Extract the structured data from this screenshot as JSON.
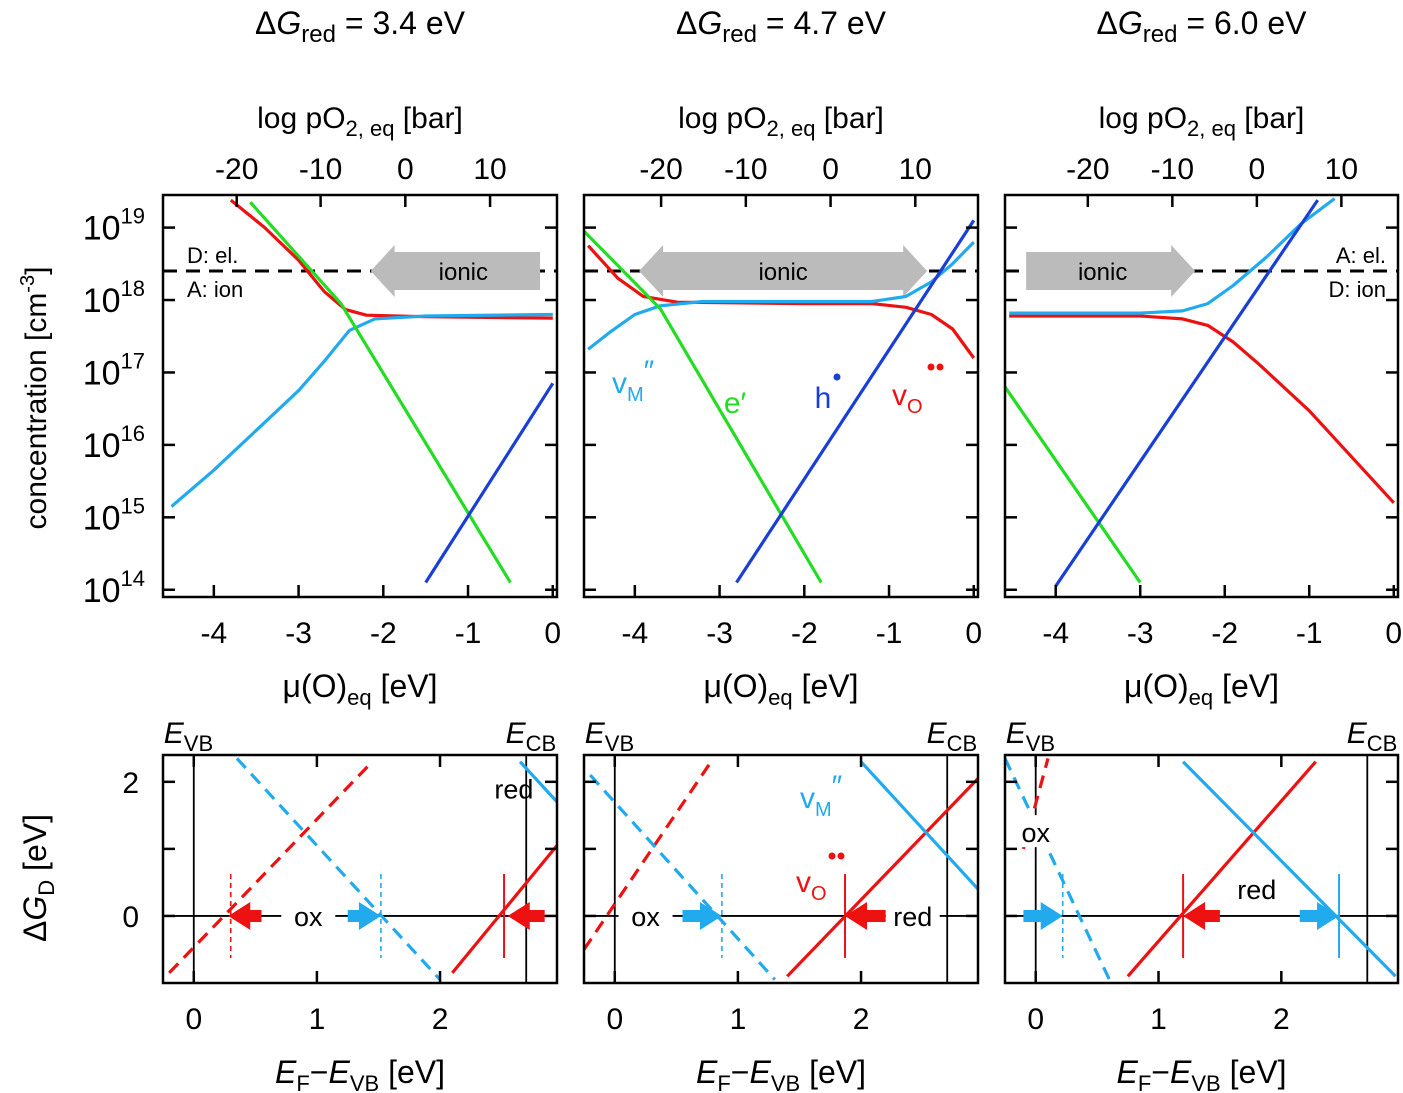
{
  "colors": {
    "vM": "#22aaee",
    "vO": "#ee1111",
    "h": "#1a3fd6",
    "e": "#22dd22",
    "arrow": "#bbbbbb",
    "axis": "#000000"
  },
  "labels": {
    "delta": "Δ",
    "G": "G",
    "red": "red",
    "ylabel_top": "concentration [cm",
    "ylabel_top_exp": "-3",
    "ylabel_top_close": "]",
    "top_axis_pre": "log pO",
    "top_axis_sub": "2, eq",
    "top_axis_post": "[bar]",
    "bottom_axis_pre": "μ(O)",
    "bottom_axis_sub": "eq",
    "bottom_axis_post": "[eV]",
    "ylabel_bottom_delta": "Δ",
    "ylabel_bottom_G": "G",
    "ylabel_bottom_sub": "D",
    "ylabel_bottom_unit": "[eV]",
    "xlabel_E": "E",
    "xlabel_F": "F",
    "xlabel_minus": "−",
    "xlabel_VB": "VB",
    "xlabel_unit": "[eV]",
    "E": "E",
    "VB": "VB",
    "CB": "CB",
    "ionic": "ionic",
    "ox": "ox",
    "red_label": "red",
    "D_el": "D: el.",
    "A_ion": "A: ion",
    "A_el": "A: el.",
    "D_ion": "D: ion",
    "vM": "v",
    "vM_sub": "M",
    "vM_sup": "″",
    "e_label": "e′",
    "h_label": "h",
    "vO": "v",
    "vO_sub": "O"
  },
  "chart_data": [
    {
      "type": "line",
      "title": "ΔGred = 3.4 eV",
      "title_value": "3.4 eV",
      "xlabel": "μ(O)eq [eV]",
      "x2label": "log pO2, eq [bar]",
      "ylabel": "concentration [cm-3]",
      "xlim": [
        -4.6,
        0.05
      ],
      "ylim_log10": [
        13.9,
        19.45
      ],
      "y_scale": "log",
      "xticks": [
        -4,
        -3,
        -2,
        -1,
        0
      ],
      "x2ticks": [
        -20,
        -10,
        0,
        10
      ],
      "x2_at_mu": [
        -3.73,
        -2.74,
        -1.74,
        -0.74
      ],
      "yticks_exp": [
        14,
        15,
        16,
        17,
        18,
        19
      ],
      "dashed_level_log10": 18.4,
      "ionic_arrow": {
        "direction": "left",
        "from": -0.15,
        "to": -2.15
      },
      "dashed_labels": "D",
      "series": [
        {
          "name": "vO",
          "color": "vO",
          "points": [
            [
              -3.8,
              19.38
            ],
            [
              -3.4,
              19.0
            ],
            [
              -3.0,
              18.55
            ],
            [
              -2.7,
              18.12
            ],
            [
              -2.45,
              17.87
            ],
            [
              -2.2,
              17.79
            ],
            [
              -1.5,
              17.77
            ],
            [
              0.0,
              17.75
            ]
          ]
        },
        {
          "name": "vM",
          "color": "vM",
          "points": [
            [
              -4.5,
              15.15
            ],
            [
              -4.0,
              15.65
            ],
            [
              -3.5,
              16.2
            ],
            [
              -3.0,
              16.75
            ],
            [
              -2.7,
              17.15
            ],
            [
              -2.4,
              17.58
            ],
            [
              -2.1,
              17.74
            ],
            [
              -1.5,
              17.78
            ],
            [
              0.0,
              17.8
            ]
          ]
        },
        {
          "name": "e'",
          "color": "e",
          "points": [
            [
              -3.57,
              19.35
            ],
            [
              -2.5,
              17.95
            ],
            [
              -0.5,
              14.1
            ]
          ]
        },
        {
          "name": "h",
          "color": "h",
          "points": [
            [
              -1.5,
              14.1
            ],
            [
              0.0,
              16.85
            ]
          ]
        }
      ]
    },
    {
      "type": "line",
      "title": "ΔGred = 4.7 eV",
      "title_value": "4.7 eV",
      "xlabel": "μ(O)eq [eV]",
      "x2label": "log pO2, eq [bar]",
      "ylabel": "concentration [cm-3]",
      "xlim": [
        -4.6,
        0.05
      ],
      "ylim_log10": [
        13.9,
        19.45
      ],
      "y_scale": "log",
      "xticks": [
        -4,
        -3,
        -2,
        -1,
        0
      ],
      "x2ticks": [
        -20,
        -10,
        0,
        10
      ],
      "x2_at_mu": [
        -3.69,
        -2.69,
        -1.69,
        -0.69
      ],
      "yticks_exp": [
        14,
        15,
        16,
        17,
        18,
        19
      ],
      "dashed_level_log10": 18.4,
      "ionic_arrow": {
        "direction": "both",
        "from": -3.95,
        "to": -0.55
      },
      "dashed_labels": "none",
      "series": [
        {
          "name": "vO",
          "color": "vO",
          "points": [
            [
              -4.55,
              18.75
            ],
            [
              -4.2,
              18.3
            ],
            [
              -3.9,
              18.05
            ],
            [
              -3.5,
              17.97
            ],
            [
              -2.0,
              17.95
            ],
            [
              -1.2,
              17.95
            ],
            [
              -0.8,
              17.9
            ],
            [
              -0.5,
              17.8
            ],
            [
              -0.25,
              17.6
            ],
            [
              0.0,
              17.2
            ]
          ]
        },
        {
          "name": "vM",
          "color": "vM",
          "points": [
            [
              -4.55,
              17.32
            ],
            [
              -4.3,
              17.55
            ],
            [
              -4.0,
              17.8
            ],
            [
              -3.7,
              17.92
            ],
            [
              -3.2,
              17.98
            ],
            [
              -1.2,
              17.98
            ],
            [
              -0.8,
              18.05
            ],
            [
              -0.5,
              18.25
            ],
            [
              -0.25,
              18.5
            ],
            [
              0.0,
              18.8
            ]
          ]
        },
        {
          "name": "e'",
          "color": "e",
          "points": [
            [
              -4.6,
              18.95
            ],
            [
              -3.7,
              17.88
            ],
            [
              -1.8,
              14.1
            ]
          ]
        },
        {
          "name": "h",
          "color": "h",
          "points": [
            [
              -2.8,
              14.1
            ],
            [
              0.0,
              19.1
            ]
          ]
        }
      ]
    },
    {
      "type": "line",
      "title": "ΔGred = 6.0 eV",
      "title_value": "6.0 eV",
      "xlabel": "μ(O)eq [eV]",
      "x2label": "log pO2, eq [bar]",
      "ylabel": "concentration [cm-3]",
      "xlim": [
        -4.6,
        0.05
      ],
      "ylim_log10": [
        13.9,
        19.45
      ],
      "y_scale": "log",
      "xticks": [
        -4,
        -3,
        -2,
        -1,
        0
      ],
      "x2ticks": [
        -20,
        -10,
        0,
        10
      ],
      "x2_at_mu": [
        -3.62,
        -2.62,
        -1.62,
        -0.62
      ],
      "yticks_exp": [
        14,
        15,
        16,
        17,
        18,
        19
      ],
      "dashed_level_log10": 18.4,
      "ionic_arrow": {
        "direction": "right",
        "from": -4.35,
        "to": -2.35
      },
      "dashed_labels": "A",
      "series": [
        {
          "name": "vO",
          "color": "vO",
          "points": [
            [
              -4.55,
              17.78
            ],
            [
              -3.0,
              17.78
            ],
            [
              -2.5,
              17.74
            ],
            [
              -2.2,
              17.65
            ],
            [
              -1.9,
              17.42
            ],
            [
              -1.6,
              17.12
            ],
            [
              -1.0,
              16.47
            ],
            [
              0.0,
              15.2
            ]
          ]
        },
        {
          "name": "vM",
          "color": "vM",
          "points": [
            [
              -4.55,
              17.82
            ],
            [
              -3.0,
              17.82
            ],
            [
              -2.5,
              17.85
            ],
            [
              -2.2,
              17.95
            ],
            [
              -1.9,
              18.2
            ],
            [
              -1.5,
              18.6
            ],
            [
              -1.1,
              19.05
            ],
            [
              -0.7,
              19.4
            ]
          ]
        },
        {
          "name": "e'",
          "color": "e",
          "points": [
            [
              -4.6,
              16.8
            ],
            [
              -3.0,
              14.1
            ]
          ]
        },
        {
          "name": "h",
          "color": "h",
          "points": [
            [
              -4.0,
              14.05
            ],
            [
              -0.9,
              19.38
            ]
          ]
        }
      ]
    }
  ],
  "chart_data_bottom": [
    {
      "type": "line",
      "xlabel": "EF−EVB [eV]",
      "ylabel": "ΔGD [eV]",
      "xlim": [
        -0.25,
        2.95
      ],
      "ylim": [
        -1.0,
        2.4
      ],
      "xticks": [
        0,
        1,
        2
      ],
      "yticks": [
        0,
        2
      ],
      "EVB": 0.0,
      "ECB": 2.7,
      "series": [
        {
          "name": "vO red",
          "color": "vO",
          "style": "dashed",
          "points": [
            [
              -0.2,
              -0.85
            ],
            [
              1.45,
              2.3
            ]
          ]
        },
        {
          "name": "vM red",
          "color": "vM",
          "style": "dashed",
          "points": [
            [
              0.35,
              2.35
            ],
            [
              2.0,
              -0.95
            ]
          ]
        },
        {
          "name": "vO red 2",
          "color": "vO",
          "style": "solid",
          "points": [
            [
              2.1,
              -0.85
            ],
            [
              2.95,
              1.05
            ]
          ]
        },
        {
          "name": "vM red 2",
          "color": "vM",
          "style": "solid",
          "points": [
            [
              2.65,
              2.3
            ],
            [
              2.95,
              1.7
            ]
          ]
        }
      ],
      "fermi_marks": [
        {
          "x": 0.3,
          "style": "dashed",
          "color": "vO"
        },
        {
          "x": 1.52,
          "style": "dashed",
          "color": "vM"
        },
        {
          "x": 2.52,
          "style": "solid",
          "color": "vO"
        }
      ],
      "arrows": [
        {
          "color": "vO",
          "from": 0.55,
          "to": 0.28
        },
        {
          "color": "vM",
          "from": 1.25,
          "to": 1.52
        },
        {
          "color": "vO",
          "from": 2.85,
          "to": 2.55
        }
      ],
      "text": [
        {
          "key": "ox",
          "x": 0.93,
          "y": 0.0,
          "bg": true
        },
        {
          "key": "red_label",
          "x": 2.6,
          "y": 1.9,
          "bg": false
        }
      ]
    },
    {
      "type": "line",
      "xlabel": "EF−EVB [eV]",
      "ylabel": "ΔGD [eV]",
      "xlim": [
        -0.25,
        2.95
      ],
      "ylim": [
        -1.0,
        2.4
      ],
      "xticks": [
        0,
        1,
        2
      ],
      "yticks": [
        0,
        2
      ],
      "EVB": 0.0,
      "ECB": 2.7,
      "series": [
        {
          "name": "vO",
          "color": "vO",
          "style": "dashed",
          "points": [
            [
              -0.25,
              -0.5
            ],
            [
              0.8,
              2.35
            ]
          ]
        },
        {
          "name": "vM",
          "color": "vM",
          "style": "dashed",
          "points": [
            [
              -0.2,
              2.1
            ],
            [
              1.3,
              -0.95
            ]
          ]
        },
        {
          "name": "vO",
          "color": "vO",
          "style": "solid",
          "points": [
            [
              1.4,
              -0.9
            ],
            [
              2.95,
              2.05
            ]
          ]
        },
        {
          "name": "vM",
          "color": "vM",
          "style": "solid",
          "points": [
            [
              2.0,
              2.3
            ],
            [
              2.95,
              0.4
            ]
          ]
        }
      ],
      "fermi_marks": [
        {
          "x": 0.87,
          "style": "dashed",
          "color": "vM"
        },
        {
          "x": 1.87,
          "style": "solid",
          "color": "vO"
        }
      ],
      "arrows": [
        {
          "color": "vM",
          "from": 0.55,
          "to": 0.87
        },
        {
          "color": "vO",
          "from": 2.2,
          "to": 1.87
        }
      ],
      "text": [
        {
          "key": "ox",
          "x": 0.25,
          "y": 0.0,
          "bg": true
        },
        {
          "key": "red_label",
          "x": 2.42,
          "y": 0.0,
          "bg": true
        }
      ]
    },
    {
      "type": "line",
      "xlabel": "EF−EVB [eV]",
      "ylabel": "ΔGD [eV]",
      "xlim": [
        -0.25,
        2.95
      ],
      "ylim": [
        -1.0,
        2.4
      ],
      "xticks": [
        0,
        1,
        2
      ],
      "yticks": [
        0,
        2
      ],
      "EVB": 0.0,
      "ECB": 2.7,
      "series": [
        {
          "name": "vO",
          "color": "vO",
          "style": "dashed",
          "points": [
            [
              -0.1,
              1.0
            ],
            [
              0.1,
              2.35
            ]
          ]
        },
        {
          "name": "vM",
          "color": "vM",
          "style": "dashed",
          "points": [
            [
              -0.25,
              2.35
            ],
            [
              0.6,
              -0.95
            ]
          ]
        },
        {
          "name": "vO",
          "color": "vO",
          "style": "solid",
          "points": [
            [
              0.75,
              -0.9
            ],
            [
              2.28,
              2.3
            ]
          ]
        },
        {
          "name": "vM",
          "color": "vM",
          "style": "solid",
          "points": [
            [
              1.2,
              2.3
            ],
            [
              2.93,
              -0.9
            ]
          ]
        }
      ],
      "fermi_marks": [
        {
          "x": 0.22,
          "style": "dashed",
          "color": "vM"
        },
        {
          "x": 1.2,
          "style": "solid",
          "color": "vO"
        },
        {
          "x": 2.47,
          "style": "solid",
          "color": "vM"
        }
      ],
      "arrows": [
        {
          "color": "vM",
          "from": -0.1,
          "to": 0.22
        },
        {
          "color": "vO",
          "from": 1.5,
          "to": 1.2
        },
        {
          "color": "vM",
          "from": 2.15,
          "to": 2.47
        }
      ],
      "text": [
        {
          "key": "ox",
          "x": 0.0,
          "y": 1.25,
          "bg": true
        },
        {
          "key": "red_label",
          "x": 1.8,
          "y": 0.4,
          "bg": false
        }
      ]
    }
  ]
}
